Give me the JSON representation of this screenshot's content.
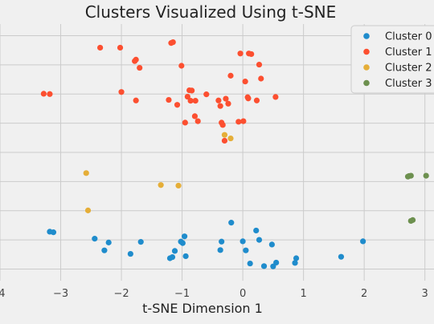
{
  "chart_data": {
    "type": "scatter",
    "title": "Clusters Visualized Using t-SNE",
    "xlabel": "t-SNE Dimension 1",
    "ylabel": "",
    "xlim": [
      -4.0,
      3.15
    ],
    "ylim": [
      -4.9,
      3.9
    ],
    "x_ticks": [
      -4,
      -3,
      -2,
      -1,
      0,
      1,
      2,
      3
    ],
    "x_tick_labels": [
      "-4",
      "−3",
      "−2",
      "−1",
      "0",
      "1",
      "2",
      "3"
    ],
    "y_ticks": [
      -4.5,
      -3.5,
      -2.5,
      -1.5,
      -0.5,
      0.5,
      1.5,
      2.5,
      3.5
    ],
    "grid": true,
    "legend_position": "top-right",
    "series": [
      {
        "name": "Cluster 0",
        "color": "#1f8ccc",
        "points": [
          [
            -3.18,
            -3.22
          ],
          [
            -3.12,
            -3.24
          ],
          [
            -2.44,
            -3.46
          ],
          [
            -2.28,
            -3.86
          ],
          [
            -2.21,
            -3.59
          ],
          [
            -1.85,
            -3.98
          ],
          [
            -1.68,
            -3.57
          ],
          [
            -1.2,
            -4.13
          ],
          [
            -1.16,
            -4.09
          ],
          [
            -1.12,
            -3.88
          ],
          [
            -1.02,
            -3.56
          ],
          [
            -0.99,
            -3.61
          ],
          [
            -0.96,
            -3.38
          ],
          [
            -0.94,
            -4.06
          ],
          [
            -0.37,
            -3.85
          ],
          [
            -0.35,
            -3.56
          ],
          [
            -0.19,
            -2.91
          ],
          [
            0.0,
            -3.55
          ],
          [
            0.05,
            -3.86
          ],
          [
            0.12,
            -4.31
          ],
          [
            0.22,
            -3.18
          ],
          [
            0.27,
            -3.5
          ],
          [
            0.35,
            -4.4
          ],
          [
            0.48,
            -3.66
          ],
          [
            0.5,
            -4.41
          ],
          [
            0.55,
            -4.28
          ],
          [
            0.86,
            -4.29
          ],
          [
            0.88,
            -4.13
          ],
          [
            1.62,
            -4.08
          ],
          [
            1.98,
            -3.55
          ]
        ]
      },
      {
        "name": "Cluster 1",
        "color": "#fc4f30",
        "points": [
          [
            -3.28,
            1.51
          ],
          [
            -3.18,
            1.5
          ],
          [
            -2.35,
            3.09
          ],
          [
            -2.02,
            3.09
          ],
          [
            -2.0,
            1.57
          ],
          [
            -1.78,
            2.63
          ],
          [
            -1.76,
            2.68
          ],
          [
            -1.76,
            1.28
          ],
          [
            -1.7,
            2.4
          ],
          [
            -1.22,
            1.3
          ],
          [
            -1.18,
            3.25
          ],
          [
            -1.15,
            3.28
          ],
          [
            -1.08,
            1.13
          ],
          [
            -1.01,
            2.47
          ],
          [
            -0.95,
            0.52
          ],
          [
            -0.91,
            1.41
          ],
          [
            -0.88,
            1.63
          ],
          [
            -0.86,
            1.27
          ],
          [
            -0.84,
            1.62
          ],
          [
            -0.79,
            0.74
          ],
          [
            -0.78,
            1.27
          ],
          [
            -0.74,
            0.57
          ],
          [
            -0.6,
            1.49
          ],
          [
            -0.4,
            1.28
          ],
          [
            -0.37,
            1.09
          ],
          [
            -0.35,
            0.52
          ],
          [
            -0.33,
            0.44
          ],
          [
            -0.3,
            -0.1
          ],
          [
            -0.28,
            1.34
          ],
          [
            -0.24,
            1.17
          ],
          [
            -0.2,
            2.13
          ],
          [
            -0.07,
            0.55
          ],
          [
            -0.04,
            2.89
          ],
          [
            0.01,
            0.57
          ],
          [
            0.04,
            1.93
          ],
          [
            0.08,
            1.39
          ],
          [
            0.09,
            1.35
          ],
          [
            0.1,
            2.89
          ],
          [
            0.14,
            2.87
          ],
          [
            0.23,
            1.28
          ],
          [
            0.27,
            2.51
          ],
          [
            0.3,
            2.03
          ],
          [
            0.54,
            1.4
          ]
        ]
      },
      {
        "name": "Cluster 2",
        "color": "#e5ae38",
        "points": [
          [
            -2.58,
            -1.21
          ],
          [
            -2.55,
            -2.49
          ],
          [
            -1.35,
            -1.62
          ],
          [
            -1.06,
            -1.64
          ],
          [
            -0.3,
            0.1
          ],
          [
            -0.2,
            -0.02
          ]
        ]
      },
      {
        "name": "Cluster 3",
        "color": "#6d904f",
        "points": [
          [
            2.72,
            -1.33
          ],
          [
            2.74,
            -1.31
          ],
          [
            2.77,
            -1.3
          ],
          [
            3.02,
            -1.3
          ],
          [
            2.77,
            -2.85
          ],
          [
            2.8,
            -2.82
          ]
        ]
      }
    ]
  }
}
